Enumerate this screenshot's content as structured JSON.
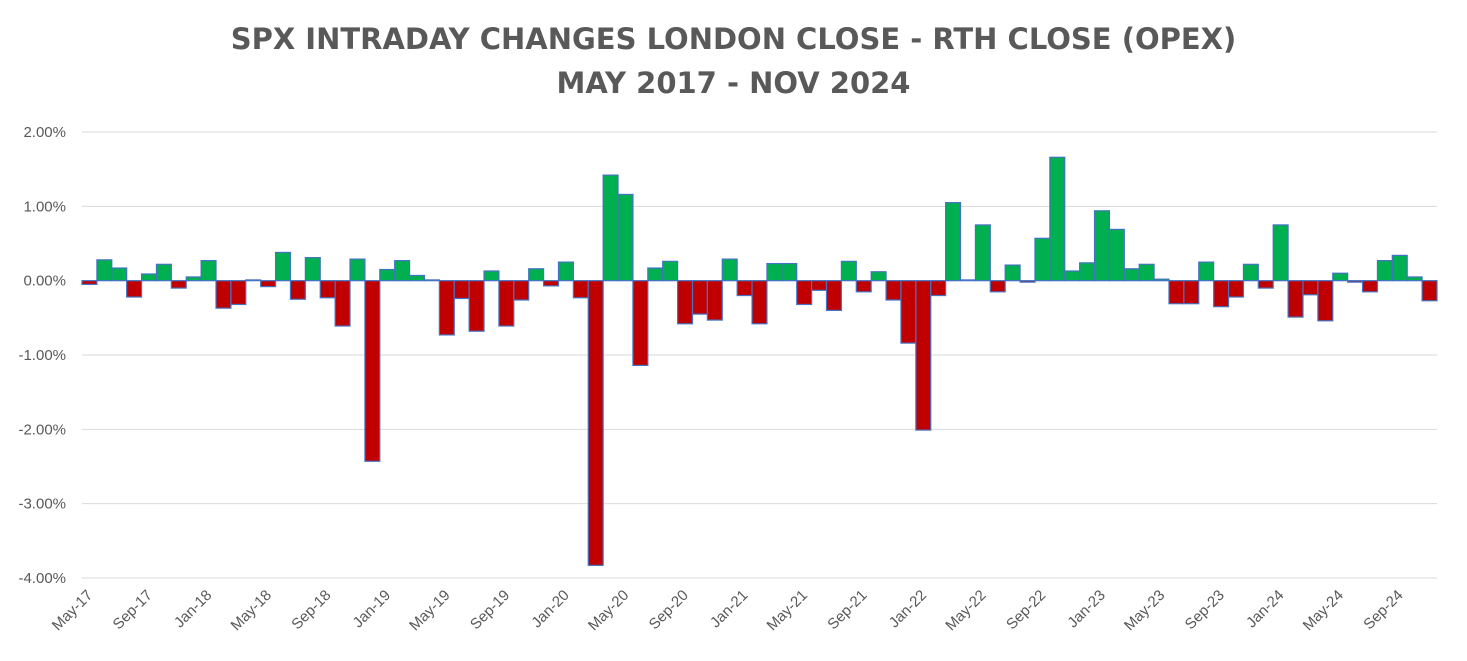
{
  "chart_data": {
    "type": "bar",
    "title": "SPX INTRADAY CHANGES LONDON CLOSE - RTH CLOSE (OPEX)",
    "subtitle": "MAY 2017 - NOV 2024",
    "xlabel": "",
    "ylabel": "",
    "ylim": [
      -0.04,
      0.02
    ],
    "yticks": [
      0.02,
      0.01,
      0.0,
      -0.01,
      -0.02,
      -0.03,
      -0.04
    ],
    "ytick_labels": [
      "2.00%",
      "1.00%",
      "0.00%",
      "-1.00%",
      "-2.00%",
      "-3.00%",
      "-4.00%"
    ],
    "grid": true,
    "legend": "none",
    "colors": {
      "positive": "#00b050",
      "negative": "#c00000",
      "edge": "#4472c4",
      "grid": "#d9d9d9",
      "text": "#595959"
    },
    "categories": [
      "May-17",
      "Jun-17",
      "Jul-17",
      "Aug-17",
      "Sep-17",
      "Oct-17",
      "Nov-17",
      "Dec-17",
      "Jan-18",
      "Feb-18",
      "Mar-18",
      "Apr-18",
      "May-18",
      "Jun-18",
      "Jul-18",
      "Aug-18",
      "Sep-18",
      "Oct-18",
      "Nov-18",
      "Dec-18",
      "Jan-19",
      "Feb-19",
      "Mar-19",
      "Apr-19",
      "May-19",
      "Jun-19",
      "Jul-19",
      "Aug-19",
      "Sep-19",
      "Oct-19",
      "Nov-19",
      "Dec-19",
      "Jan-20",
      "Feb-20",
      "Mar-20",
      "Apr-20",
      "May-20",
      "Jun-20",
      "Jul-20",
      "Aug-20",
      "Sep-20",
      "Oct-20",
      "Nov-20",
      "Dec-20",
      "Jan-21",
      "Feb-21",
      "Mar-21",
      "Apr-21",
      "May-21",
      "Jun-21",
      "Jul-21",
      "Aug-21",
      "Sep-21",
      "Oct-21",
      "Nov-21",
      "Dec-21",
      "Jan-22",
      "Feb-22",
      "Mar-22",
      "Apr-22",
      "May-22",
      "Jun-22",
      "Jul-22",
      "Aug-22",
      "Sep-22",
      "Oct-22",
      "Nov-22",
      "Dec-22",
      "Jan-23",
      "Feb-23",
      "Mar-23",
      "Apr-23",
      "May-23",
      "Jun-23",
      "Jul-23",
      "Aug-23",
      "Sep-23",
      "Oct-23",
      "Nov-23",
      "Dec-23",
      "Jan-24",
      "Feb-24",
      "Mar-24",
      "Apr-24",
      "May-24",
      "Jun-24",
      "Jul-24",
      "Aug-24",
      "Sep-24",
      "Oct-24",
      "Nov-24"
    ],
    "values": [
      -0.0005,
      0.0028,
      0.0017,
      -0.0022,
      0.0009,
      0.0022,
      -0.001,
      0.0005,
      0.0027,
      -0.0037,
      -0.0032,
      0.0001,
      -0.0008,
      0.0038,
      -0.0025,
      0.0031,
      -0.0023,
      -0.0061,
      0.0029,
      -0.0243,
      0.0015,
      0.0027,
      0.0007,
      0.0001,
      -0.0073,
      -0.0024,
      -0.0068,
      0.0013,
      -0.0061,
      -0.0026,
      0.0016,
      -0.0007,
      0.0025,
      -0.0023,
      -0.0383,
      0.0142,
      0.0116,
      -0.0114,
      0.0017,
      0.0026,
      -0.0058,
      -0.0045,
      -0.0053,
      0.0029,
      -0.002,
      -0.0058,
      0.0023,
      0.0023,
      -0.0032,
      -0.0013,
      -0.004,
      0.0026,
      -0.0015,
      0.0012,
      -0.0026,
      -0.0084,
      -0.0201,
      -0.002,
      0.0105,
      0.0001,
      0.0075,
      -0.0015,
      0.0021,
      -0.0002,
      0.0057,
      0.0166,
      0.0013,
      0.0024,
      0.0094,
      0.0069,
      0.0016,
      0.0022,
      0.0002,
      -0.0031,
      -0.0031,
      0.0025,
      -0.0035,
      -0.0022,
      0.0022,
      -0.001,
      0.0075,
      -0.0049,
      -0.0019,
      -0.0054,
      0.001,
      -0.0002,
      -0.0015,
      0.0027,
      0.0034,
      0.0005,
      -0.0027
    ],
    "x_tick_labels": [
      "May-17",
      "Sep-17",
      "Jan-18",
      "May-18",
      "Sep-18",
      "Jan-19",
      "May-19",
      "Sep-19",
      "Jan-20",
      "May-20",
      "Sep-20",
      "Jan-21",
      "May-21",
      "Sep-21",
      "Jan-22",
      "May-22",
      "Sep-22",
      "Jan-23",
      "May-23",
      "Sep-23",
      "Jan-24",
      "May-24",
      "Sep-24"
    ]
  }
}
